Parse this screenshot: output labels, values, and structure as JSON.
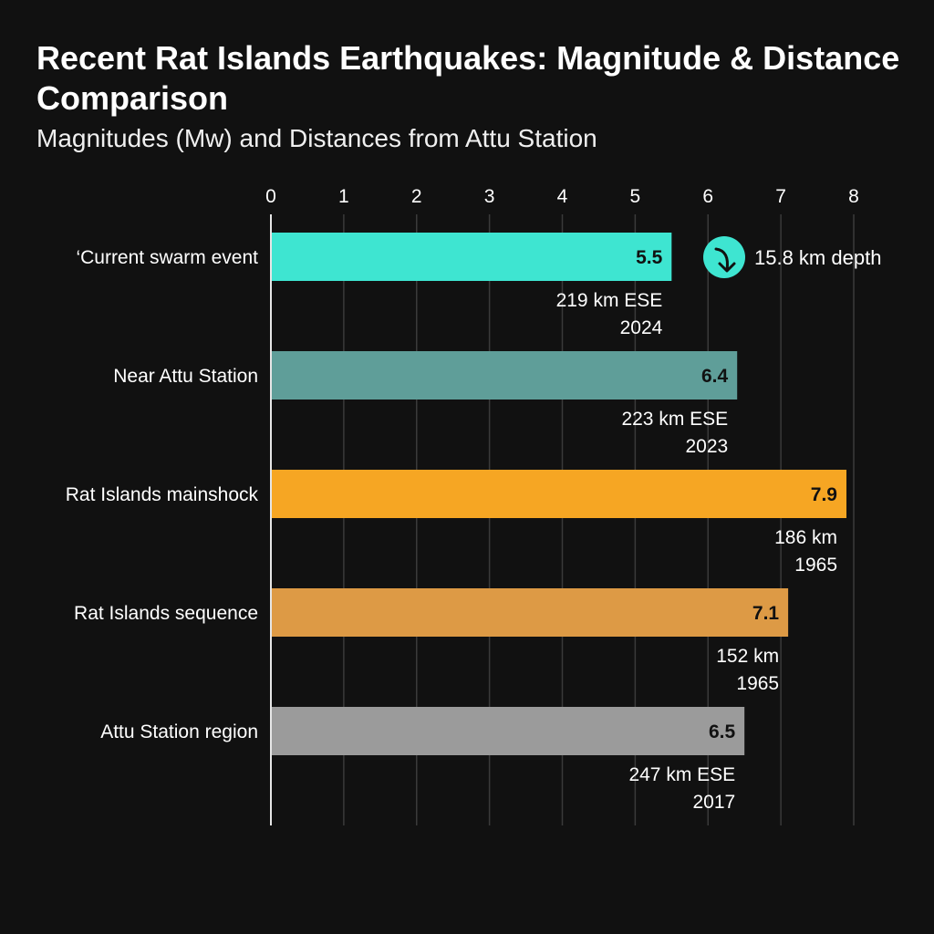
{
  "chart_data": {
    "type": "bar",
    "orientation": "horizontal",
    "title": "Recent Rat Islands Earthquakes: Magnitude & Distance Comparison",
    "subtitle": "Magnitudes (Mw) and Distances from Attu Station",
    "xlim": [
      0,
      8
    ],
    "xticks": [
      "0",
      "1",
      "2",
      "3",
      "4",
      "5",
      "6",
      "7",
      "8"
    ],
    "grid": true,
    "categories": [
      "‘Current swarm event",
      "Near Attu Station",
      "Rat Islands mainshock",
      "Rat Islands sequence",
      "Attu Station region"
    ],
    "values": [
      5.5,
      6.4,
      7.9,
      7.1,
      6.5
    ],
    "value_labels": [
      "5.5",
      "6.4",
      "7.9",
      "7.1",
      "6.5"
    ],
    "distances": [
      "219 km ESE",
      "223 km ESE",
      "186 km",
      "152 km",
      "247 km ESE"
    ],
    "years": [
      "2024",
      "2023",
      "1965",
      "1965",
      "2017"
    ],
    "colors": [
      "#3ee5d1",
      "#5f9e99",
      "#f6a623",
      "#dd9a45",
      "#9b9b9b"
    ],
    "annotation": {
      "text": "15.8 km depth",
      "icon": "arrow-down-icon",
      "color": "#3ee5d1"
    }
  }
}
